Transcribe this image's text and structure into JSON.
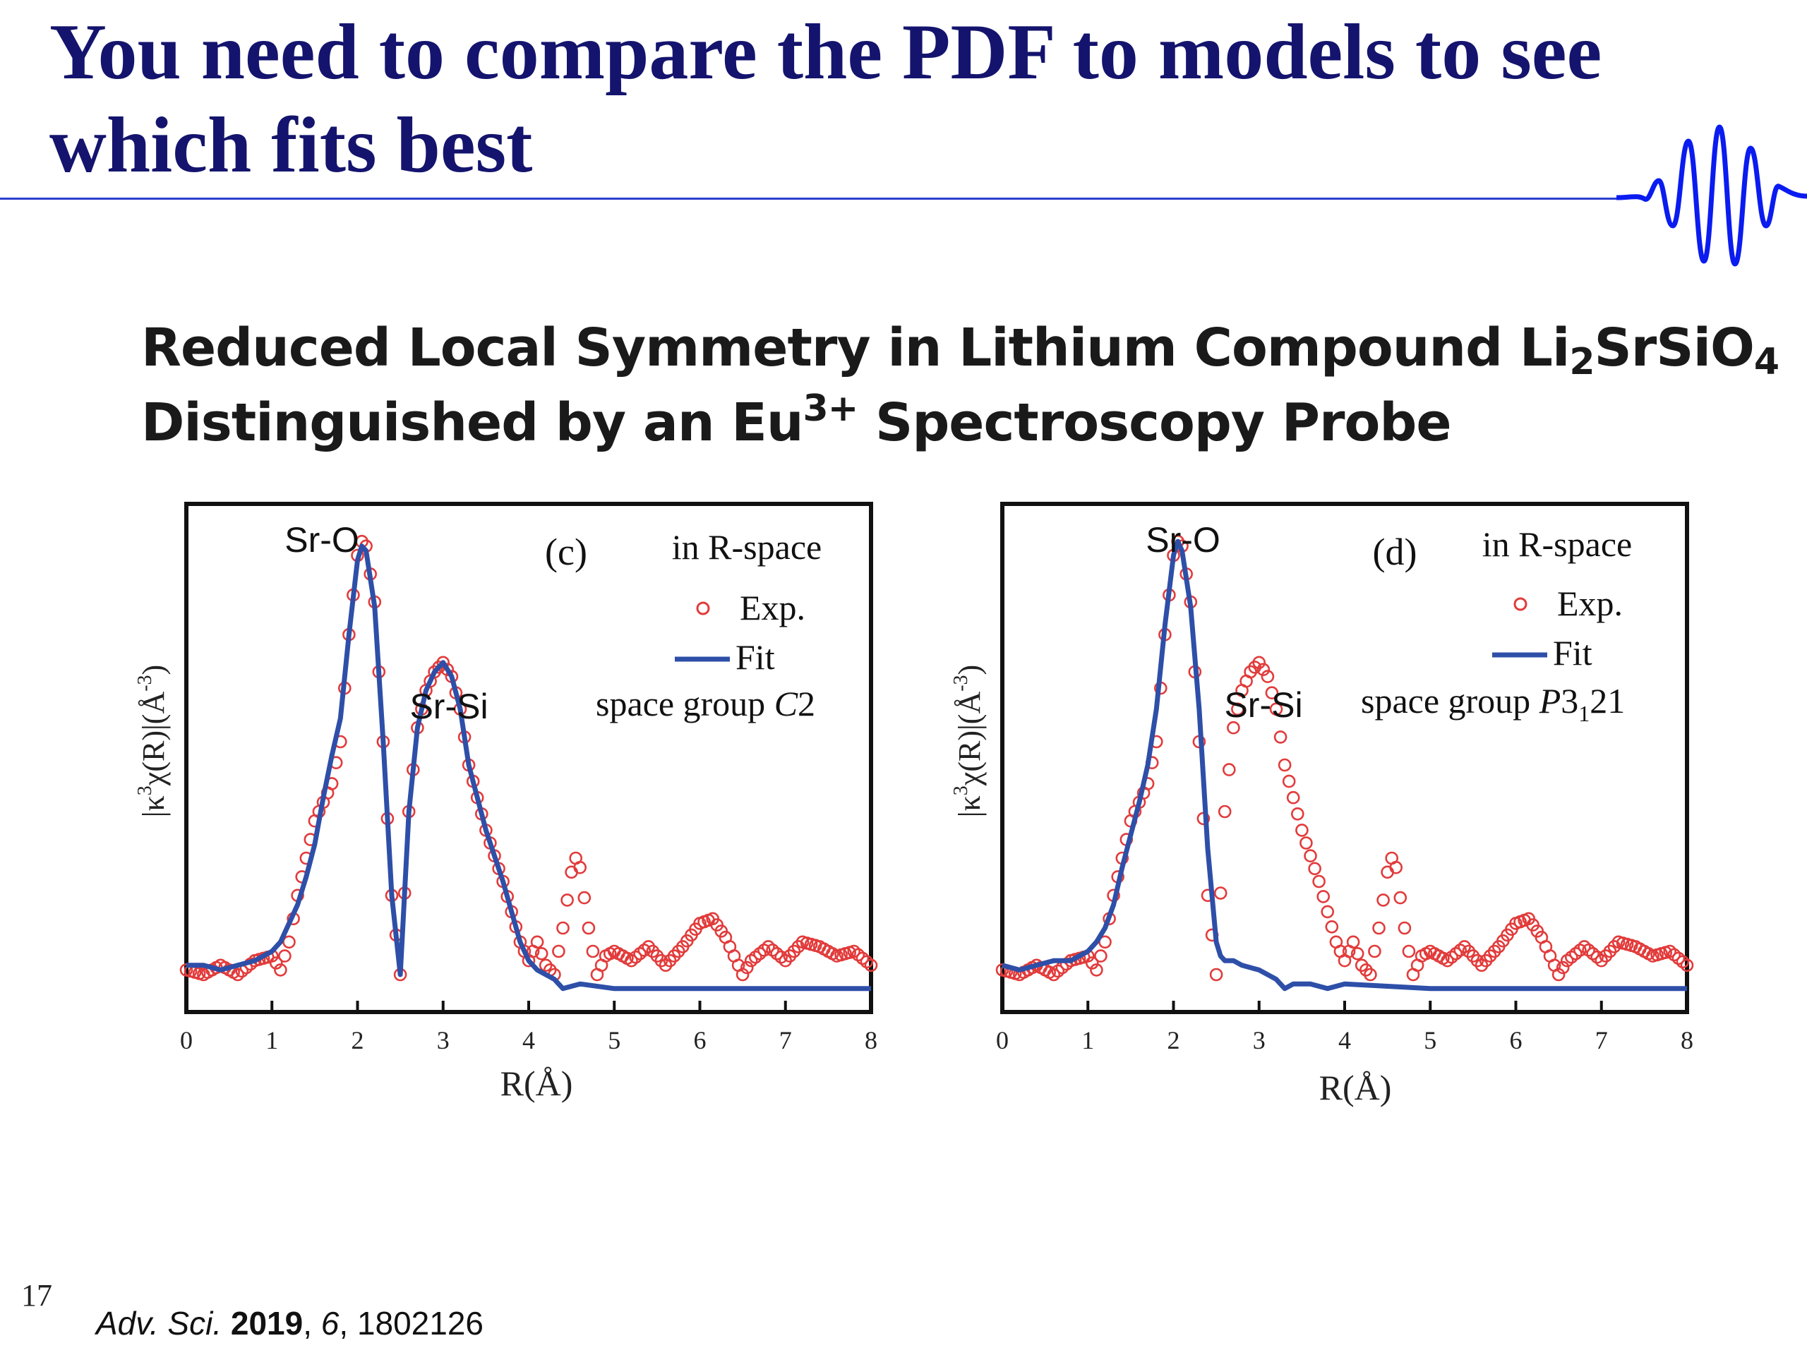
{
  "slide": {
    "title_line1": "You need to compare the PDF to models to see",
    "title_line2": "which fits best",
    "page_number": "17",
    "decoration_icon": "wave-packet-icon"
  },
  "paper": {
    "title_line1_a": "Reduced Local Symmetry in Lithium Compound Li",
    "title_line1_sub1": "2",
    "title_line1_b": "SrSiO",
    "title_line1_sub2": "4",
    "title_line2_a": "Distinguished by an Eu",
    "title_line2_sup": "3+",
    "title_line2_b": " Spectroscopy Probe"
  },
  "citation": {
    "journal": "Adv. Sci.",
    "year": "2019",
    "volume": "6",
    "article": "1802126",
    "sep1": " ",
    "sep2": ", ",
    "sep3": ", "
  },
  "colors": {
    "exp": "#e23b3b",
    "fit": "#2e4fa8",
    "title": "#14146e",
    "rule": "#2b3fcf"
  },
  "chart_data": [
    {
      "type": "line",
      "panel_label": "(c)",
      "legend_header": "in R-space",
      "legend": [
        "Exp.",
        "Fit"
      ],
      "annotation": "space group C2",
      "annotation_prefix": "space group ",
      "annotation_italic": "C",
      "annotation_suffix": "2",
      "peaks": [
        "Sr-O",
        "Sr-Si"
      ],
      "xlabel": "R(Å)",
      "ylabel_prefix": "|κ",
      "ylabel_sup1": "3",
      "ylabel_mid": "χ(R)|(Å",
      "ylabel_sup2": "-3",
      "ylabel_suffix": ")",
      "xlim": [
        0,
        8
      ],
      "ylim": [
        0,
        1
      ],
      "xticks": [
        "0",
        "1",
        "2",
        "3",
        "4",
        "5",
        "6",
        "7",
        "8"
      ],
      "series": [
        {
          "name": "Exp.",
          "style": "circles",
          "x": [
            0,
            0.2,
            0.4,
            0.6,
            0.8,
            1.0,
            1.1,
            1.2,
            1.3,
            1.5,
            1.7,
            1.8,
            1.9,
            2.0,
            2.05,
            2.1,
            2.2,
            2.3,
            2.4,
            2.5,
            2.6,
            2.7,
            2.8,
            2.9,
            3.0,
            3.1,
            3.2,
            3.3,
            3.5,
            3.7,
            3.9,
            4.0,
            4.1,
            4.2,
            4.3,
            4.4,
            4.5,
            4.55,
            4.6,
            4.7,
            4.8,
            4.9,
            5.0,
            5.2,
            5.4,
            5.6,
            5.8,
            6.0,
            6.15,
            6.3,
            6.5,
            6.6,
            6.8,
            7.0,
            7.2,
            7.4,
            7.6,
            7.8,
            8.0
          ],
          "y": [
            0.06,
            0.05,
            0.07,
            0.05,
            0.08,
            0.09,
            0.06,
            0.12,
            0.22,
            0.38,
            0.46,
            0.55,
            0.78,
            0.95,
            0.98,
            0.97,
            0.85,
            0.55,
            0.22,
            0.05,
            0.4,
            0.58,
            0.66,
            0.7,
            0.72,
            0.69,
            0.62,
            0.5,
            0.36,
            0.25,
            0.12,
            0.08,
            0.12,
            0.07,
            0.05,
            0.15,
            0.27,
            0.3,
            0.28,
            0.15,
            0.05,
            0.09,
            0.1,
            0.08,
            0.11,
            0.07,
            0.11,
            0.16,
            0.17,
            0.13,
            0.05,
            0.08,
            0.11,
            0.08,
            0.12,
            0.11,
            0.09,
            0.1,
            0.07
          ]
        },
        {
          "name": "Fit",
          "style": "line",
          "x": [
            0,
            0.2,
            0.4,
            0.6,
            0.8,
            1.0,
            1.1,
            1.2,
            1.3,
            1.4,
            1.5,
            1.6,
            1.7,
            1.8,
            1.9,
            2.0,
            2.05,
            2.1,
            2.2,
            2.3,
            2.4,
            2.5,
            2.6,
            2.7,
            2.8,
            2.9,
            3.0,
            3.1,
            3.2,
            3.3,
            3.5,
            3.7,
            3.9,
            4.0,
            4.1,
            4.2,
            4.3,
            4.4,
            4.6,
            5.0,
            6.0,
            7.0,
            8.0
          ],
          "y": [
            0.07,
            0.07,
            0.06,
            0.07,
            0.08,
            0.1,
            0.12,
            0.16,
            0.2,
            0.26,
            0.33,
            0.43,
            0.52,
            0.6,
            0.78,
            0.94,
            0.97,
            0.96,
            0.84,
            0.55,
            0.22,
            0.05,
            0.4,
            0.58,
            0.66,
            0.7,
            0.72,
            0.69,
            0.62,
            0.5,
            0.36,
            0.25,
            0.12,
            0.08,
            0.06,
            0.05,
            0.04,
            0.02,
            0.03,
            0.02,
            0.02,
            0.02,
            0.02
          ]
        }
      ]
    },
    {
      "type": "line",
      "panel_label": "(d)",
      "legend_header": "in R-space",
      "legend": [
        "Exp.",
        "Fit"
      ],
      "annotation": "space group P3121",
      "annotation_prefix": "space group ",
      "annotation_italic": "P",
      "annotation_suffix": "3",
      "annotation_sub": "1",
      "annotation_suffix2": "21",
      "peaks": [
        "Sr-O",
        "Sr-Si"
      ],
      "xlabel": "R(Å)",
      "ylabel_prefix": "|κ",
      "ylabel_sup1": "3",
      "ylabel_mid": "χ(R)|(Å",
      "ylabel_sup2": "-3",
      "ylabel_suffix": ")",
      "xlim": [
        0,
        8
      ],
      "ylim": [
        0,
        1
      ],
      "xticks": [
        "0",
        "1",
        "2",
        "3",
        "4",
        "5",
        "6",
        "7",
        "8"
      ],
      "series": [
        {
          "name": "Exp.",
          "style": "circles",
          "x": [
            0,
            0.2,
            0.4,
            0.6,
            0.8,
            1.0,
            1.1,
            1.2,
            1.3,
            1.5,
            1.7,
            1.8,
            1.9,
            2.0,
            2.05,
            2.1,
            2.2,
            2.3,
            2.4,
            2.5,
            2.6,
            2.7,
            2.8,
            2.9,
            3.0,
            3.1,
            3.2,
            3.3,
            3.5,
            3.7,
            3.9,
            4.0,
            4.1,
            4.2,
            4.3,
            4.4,
            4.5,
            4.55,
            4.6,
            4.7,
            4.8,
            4.9,
            5.0,
            5.2,
            5.4,
            5.6,
            5.8,
            6.0,
            6.15,
            6.3,
            6.5,
            6.6,
            6.8,
            7.0,
            7.2,
            7.4,
            7.6,
            7.8,
            8.0
          ],
          "y": [
            0.06,
            0.05,
            0.07,
            0.05,
            0.08,
            0.09,
            0.06,
            0.12,
            0.22,
            0.38,
            0.46,
            0.55,
            0.78,
            0.95,
            0.98,
            0.97,
            0.85,
            0.55,
            0.22,
            0.05,
            0.4,
            0.58,
            0.66,
            0.7,
            0.72,
            0.69,
            0.62,
            0.5,
            0.36,
            0.25,
            0.12,
            0.08,
            0.12,
            0.07,
            0.05,
            0.15,
            0.27,
            0.3,
            0.28,
            0.15,
            0.05,
            0.09,
            0.1,
            0.08,
            0.11,
            0.07,
            0.11,
            0.16,
            0.17,
            0.13,
            0.05,
            0.08,
            0.11,
            0.08,
            0.12,
            0.11,
            0.09,
            0.1,
            0.07
          ]
        },
        {
          "name": "Fit",
          "style": "line",
          "x": [
            0,
            0.2,
            0.4,
            0.6,
            0.8,
            1.0,
            1.1,
            1.2,
            1.3,
            1.4,
            1.5,
            1.6,
            1.7,
            1.8,
            1.9,
            2.0,
            2.05,
            2.1,
            2.2,
            2.3,
            2.4,
            2.5,
            2.55,
            2.6,
            2.7,
            2.8,
            3.0,
            3.2,
            3.3,
            3.4,
            3.6,
            3.8,
            4.0,
            5.0,
            6.0,
            7.0,
            8.0
          ],
          "y": [
            0.07,
            0.06,
            0.07,
            0.08,
            0.08,
            0.1,
            0.12,
            0.15,
            0.2,
            0.28,
            0.35,
            0.42,
            0.5,
            0.62,
            0.8,
            0.95,
            0.98,
            0.96,
            0.84,
            0.62,
            0.32,
            0.12,
            0.09,
            0.08,
            0.08,
            0.07,
            0.06,
            0.04,
            0.02,
            0.03,
            0.03,
            0.02,
            0.03,
            0.02,
            0.02,
            0.02,
            0.02
          ]
        }
      ]
    }
  ]
}
